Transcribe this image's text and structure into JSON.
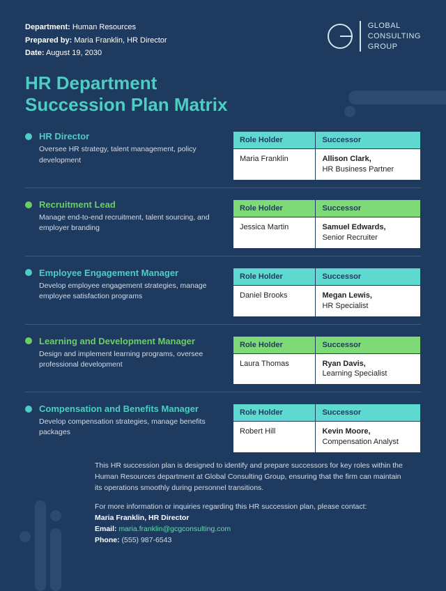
{
  "colors": {
    "bg": "#1e3a5f",
    "teal": "#4ecdc4",
    "green": "#6bcf63",
    "teal_header": "#5fd8d0",
    "green_header": "#7ed977",
    "deco": "#2a4a70"
  },
  "meta": {
    "department_label": "Department:",
    "department_value": "Human Resources",
    "prepared_label": "Prepared by:",
    "prepared_value": "Maria Franklin, HR Director",
    "date_label": "Date:",
    "date_value": "August 19, 2030"
  },
  "logo": {
    "line1": "GLOBAL",
    "line2": "CONSULTING",
    "line3": "GROUP"
  },
  "title_line1": "HR Department",
  "title_line2": "Succession Plan Matrix",
  "table_headers": {
    "holder": "Role Holder",
    "successor": "Successor"
  },
  "roles": [
    {
      "accent": "teal",
      "title": "HR Director",
      "desc": "Oversee HR strategy, talent management, policy development",
      "holder": "Maria Franklin",
      "successor_name": "Allison Clark,",
      "successor_title": "HR Business Partner"
    },
    {
      "accent": "green",
      "title": "Recruitment Lead",
      "desc": "Manage end-to-end recruitment, talent sourcing, and employer branding",
      "holder": "Jessica Martin",
      "successor_name": "Samuel Edwards,",
      "successor_title": "Senior Recruiter"
    },
    {
      "accent": "teal",
      "title": "Employee Engagement Manager",
      "desc": "Develop employee engagement strategies, manage employee satisfaction programs",
      "holder": "Daniel Brooks",
      "successor_name": "Megan Lewis,",
      "successor_title": "HR Specialist"
    },
    {
      "accent": "green",
      "title": "Learning and Development Manager",
      "desc": "Design and implement learning programs, oversee professional development",
      "holder": "Laura Thomas",
      "successor_name": "Ryan Davis,",
      "successor_title": "Learning Specialist"
    },
    {
      "accent": "teal",
      "title": "Compensation and Benefits Manager",
      "desc": "Develop compensation strategies, manage benefits packages",
      "holder": "Robert Hill",
      "successor_name": "Kevin Moore,",
      "successor_title": "Compensation Analyst"
    }
  ],
  "footer": {
    "para": "This HR succession plan is designed to identify and prepare successors for key roles within the Human Resources department at Global Consulting Group, ensuring that the firm can maintain its operations smoothly during personnel transitions.",
    "more_info": "For more information or inquiries regarding this HR succession plan, please contact:",
    "contact_name": "Maria Franklin, HR Director",
    "email_label": "Email:",
    "email_value": "maria.franklin@gcgconsulting.com",
    "phone_label": "Phone:",
    "phone_value": "(555) 987-6543"
  }
}
